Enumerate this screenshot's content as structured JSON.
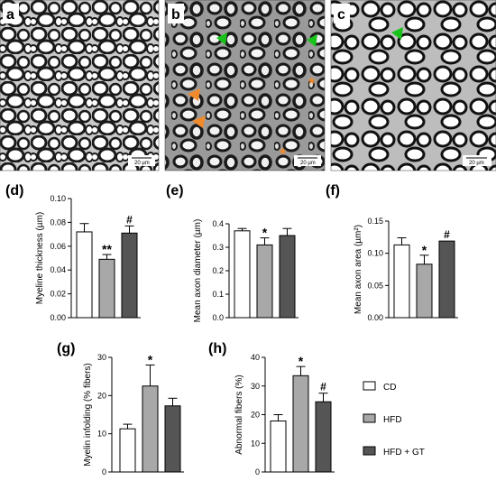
{
  "micrographs": [
    {
      "label": "a",
      "scale_bar": "20 µm"
    },
    {
      "label": "b",
      "scale_bar": "20 µm"
    },
    {
      "label": "c",
      "scale_bar": "20 µm"
    }
  ],
  "legend": [
    {
      "label": "CD",
      "color": "#ffffff"
    },
    {
      "label": "HFD",
      "color": "#a8a8a8"
    },
    {
      "label": "HFD + GT",
      "color": "#555555"
    }
  ],
  "chart_data": [
    {
      "id": "d",
      "panel_label": "(d)",
      "type": "bar",
      "categories": [
        "CD",
        "HFD",
        "HFD + GT"
      ],
      "values": [
        0.072,
        0.049,
        0.071
      ],
      "errors": [
        0.007,
        0.004,
        0.006
      ],
      "marks": [
        "",
        "**",
        "#"
      ],
      "ylabel": "Myeline thickness (µm)",
      "ylim": [
        0,
        0.1
      ],
      "yticks": [
        0.0,
        0.02,
        0.04,
        0.06,
        0.08,
        0.1
      ],
      "ytick_labels": [
        "0.00",
        "0.02",
        "0.04",
        "0.06",
        "0.08",
        "0.10"
      ]
    },
    {
      "id": "e",
      "panel_label": "(e)",
      "type": "bar",
      "categories": [
        "CD",
        "HFD",
        "HFD + GT"
      ],
      "values": [
        0.37,
        0.31,
        0.35
      ],
      "errors": [
        0.01,
        0.03,
        0.03
      ],
      "marks": [
        "",
        "*",
        ""
      ],
      "ylabel": "Mean axon diameter (µm)",
      "ylim": [
        0,
        0.4
      ],
      "yticks": [
        0.0,
        0.1,
        0.2,
        0.3,
        0.4
      ],
      "ytick_labels": [
        "0.0",
        "0.1",
        "0.2",
        "0.3",
        "0.4"
      ]
    },
    {
      "id": "f",
      "panel_label": "(f)",
      "type": "bar",
      "categories": [
        "CD",
        "HFD",
        "HFD + GT"
      ],
      "values": [
        0.113,
        0.083,
        0.119
      ],
      "errors": [
        0.011,
        0.014,
        0.0
      ],
      "marks": [
        "",
        "*",
        "#"
      ],
      "ylabel": "Mean axon area (µm²)",
      "ylim": [
        0,
        0.15
      ],
      "yticks": [
        0.0,
        0.05,
        0.1,
        0.15
      ],
      "ytick_labels": [
        "0.00",
        "0.05",
        "0.10",
        "0.15"
      ]
    },
    {
      "id": "g",
      "panel_label": "(g)",
      "type": "bar",
      "categories": [
        "CD",
        "HFD",
        "HFD + GT"
      ],
      "values": [
        11.3,
        22.5,
        17.3
      ],
      "errors": [
        1.2,
        5.5,
        2.0
      ],
      "marks": [
        "",
        "*",
        ""
      ],
      "ylabel": "Myelin infolding (% fibers)",
      "ylim": [
        0,
        30
      ],
      "yticks": [
        0,
        10,
        20,
        30
      ],
      "ytick_labels": [
        "0",
        "10",
        "20",
        "30"
      ]
    },
    {
      "id": "h",
      "panel_label": "(h)",
      "type": "bar",
      "categories": [
        "CD",
        "HFD",
        "HFD + GT"
      ],
      "values": [
        17.8,
        33.6,
        24.5
      ],
      "errors": [
        2.2,
        3.2,
        3.0
      ],
      "marks": [
        "",
        "*",
        "#"
      ],
      "ylabel": "Abnormal fibers (%)",
      "ylim": [
        0,
        40
      ],
      "yticks": [
        0,
        10,
        20,
        30,
        40
      ],
      "ytick_labels": [
        "0",
        "10",
        "20",
        "30",
        "40"
      ]
    }
  ]
}
